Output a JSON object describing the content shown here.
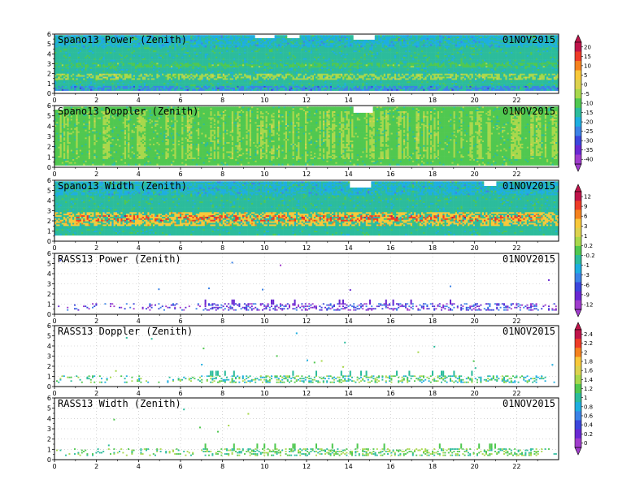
{
  "figure": {
    "date": "01NOV2015"
  },
  "chart_data": [
    {
      "type": "heatmap",
      "title": "Spano13 Power (Zenith)",
      "date": "01NOV2015",
      "xlim": [
        0,
        24
      ],
      "ylim": [
        0,
        6
      ],
      "x_ticks": [
        "0",
        "2",
        "4",
        "6",
        "8",
        "10",
        "12",
        "14",
        "16",
        "18",
        "20",
        "22"
      ],
      "y_ticks": [
        "0",
        "1",
        "2",
        "3",
        "4",
        "5",
        "6"
      ],
      "colorbar": {
        "ticks": [
          "20",
          "15",
          "10",
          "5",
          "0",
          "-5",
          "-10",
          "-15",
          "-20",
          "-25",
          "-30",
          "-35",
          "-40"
        ],
        "colors": [
          "#c0144a",
          "#ee3c28",
          "#f5821e",
          "#f8c83a",
          "#dcd24e",
          "#a8d84c",
          "#50c850",
          "#2cbc9c",
          "#1eaee0",
          "#3c82e6",
          "#3c46dc",
          "#6a28d2",
          "#a03ccc"
        ]
      },
      "pattern": {
        "mode": "profiler",
        "top_km": 5.9,
        "bottom_km": 0.3,
        "background_color_index": 7,
        "features": [
          {
            "from_km": 1.4,
            "to_km": 2.0,
            "color_index": 5
          },
          {
            "from_km": 2.7,
            "to_km": 3.1,
            "color_index": 6
          },
          {
            "from_km": 4.8,
            "to_km": 5.9,
            "color_index": 8
          },
          {
            "from_km": 0.3,
            "to_km": 0.8,
            "color_index": 9
          }
        ],
        "gaps": [
          {
            "x_from": 9.5,
            "x_to": 10.4,
            "from_km": 5.6,
            "to_km": 6.0
          },
          {
            "x_from": 14.2,
            "x_to": 15.2,
            "from_km": 5.5,
            "to_km": 6.0
          },
          {
            "x_from": 11.0,
            "x_to": 11.6,
            "from_km": 5.7,
            "to_km": 6.0
          }
        ]
      }
    },
    {
      "type": "heatmap",
      "title": "Spano13 Doppler (Zenith)",
      "date": "01NOV2015",
      "xlim": [
        0,
        24
      ],
      "ylim": [
        0,
        6
      ],
      "x_ticks": [
        "0",
        "2",
        "4",
        "6",
        "8",
        "10",
        "12",
        "14",
        "16",
        "18",
        "20",
        "22"
      ],
      "y_ticks": [
        "0",
        "1",
        "2",
        "3",
        "4",
        "5",
        "6"
      ],
      "pattern": {
        "mode": "profiler",
        "top_km": 5.9,
        "bottom_km": 0.2,
        "background_color_index": 6,
        "features": [
          {
            "from_km": 0.8,
            "to_km": 5.5,
            "color_index": 5,
            "vertical_streaks": true
          }
        ],
        "gaps": [
          {
            "x_from": 14.2,
            "x_to": 15.1,
            "from_km": 5.4,
            "to_km": 6.0
          },
          {
            "x_from": 0.0,
            "x_to": 0.4,
            "from_km": 5.7,
            "to_km": 6.0
          }
        ]
      }
    },
    {
      "type": "heatmap",
      "title": "Spano13 Width (Zenith)",
      "date": "01NOV2015",
      "xlim": [
        0,
        24
      ],
      "ylim": [
        0,
        6
      ],
      "x_ticks": [
        "0",
        "2",
        "4",
        "6",
        "8",
        "10",
        "12",
        "14",
        "16",
        "18",
        "20",
        "22"
      ],
      "y_ticks": [
        "0",
        "1",
        "2",
        "3",
        "4",
        "5",
        "6"
      ],
      "colorbar": {
        "ticks": [
          "12",
          "9",
          "6",
          "3",
          "1",
          "0.2",
          "-0.2",
          "-1",
          "-3",
          "-6",
          "-9",
          "-12"
        ],
        "colors": [
          "#c0144a",
          "#ee3c28",
          "#f5821e",
          "#f8c83a",
          "#dcd24e",
          "#a8d84c",
          "#50c850",
          "#2cbc9c",
          "#1eaee0",
          "#3c82e6",
          "#3c46dc",
          "#6a28d2",
          "#a03ccc"
        ]
      },
      "pattern": {
        "mode": "profiler",
        "top_km": 5.9,
        "bottom_km": 0.6,
        "background_color_index": 7,
        "features": [
          {
            "from_km": 1.6,
            "to_km": 3.0,
            "color_index": 3
          },
          {
            "from_km": 2.0,
            "to_km": 2.6,
            "color_index": 1,
            "sparse": true
          },
          {
            "from_km": 4.6,
            "to_km": 5.9,
            "color_index": 8
          }
        ],
        "gaps": [
          {
            "x_from": 14.0,
            "x_to": 15.0,
            "from_km": 5.4,
            "to_km": 6.0
          },
          {
            "x_from": 20.4,
            "x_to": 21.0,
            "from_km": 5.5,
            "to_km": 6.0
          }
        ]
      }
    },
    {
      "type": "heatmap",
      "title": "RASS13 Power (Zenith)",
      "date": "01NOV2015",
      "xlim": [
        0,
        24
      ],
      "ylim": [
        0,
        6
      ],
      "x_ticks": [
        "0",
        "2",
        "4",
        "6",
        "8",
        "10",
        "12",
        "14",
        "16",
        "18",
        "20",
        "22"
      ],
      "y_ticks": [
        "0",
        "1",
        "2",
        "3",
        "4",
        "5",
        "6"
      ],
      "pattern": {
        "mode": "rass",
        "band_from_km": 0.5,
        "band_to_km": 1.1,
        "dot_color_indices": [
          11,
          12,
          10,
          9
        ]
      }
    },
    {
      "type": "heatmap",
      "title": "RASS13 Doppler (Zenith)",
      "date": "01NOV2015",
      "xlim": [
        0,
        24
      ],
      "ylim": [
        0,
        6
      ],
      "x_ticks": [
        "0",
        "2",
        "4",
        "6",
        "8",
        "10",
        "12",
        "14",
        "16",
        "18",
        "20",
        "22"
      ],
      "y_ticks": [
        "0",
        "1",
        "2",
        "3",
        "4",
        "5",
        "6"
      ],
      "colorbar": {
        "ticks": [
          "2.4",
          "2.2",
          "2",
          "1.8",
          "1.6",
          "1.4",
          "1.2",
          "1",
          "0.8",
          "0.6",
          "0.4",
          "0.2",
          "0"
        ],
        "colors": [
          "#c0144a",
          "#ee3c28",
          "#f5821e",
          "#f8c83a",
          "#dcd24e",
          "#a8d84c",
          "#50c850",
          "#2cbc9c",
          "#1eaee0",
          "#3c82e6",
          "#3c46dc",
          "#6a28d2",
          "#a03ccc"
        ]
      },
      "pattern": {
        "mode": "rass",
        "band_from_km": 0.5,
        "band_to_km": 1.2,
        "dot_color_indices": [
          7,
          6,
          5,
          8
        ]
      }
    },
    {
      "type": "heatmap",
      "title": "RASS13 Width (Zenith)",
      "date": "01NOV2015",
      "xlim": [
        0,
        24
      ],
      "ylim": [
        0,
        6
      ],
      "x_ticks": [
        "0",
        "2",
        "4",
        "6",
        "8",
        "10",
        "12",
        "14",
        "16",
        "18",
        "20",
        "22"
      ],
      "y_ticks": [
        "0",
        "1",
        "2",
        "3",
        "4",
        "5",
        "6"
      ],
      "pattern": {
        "mode": "rass",
        "band_from_km": 0.5,
        "band_to_km": 1.2,
        "dot_color_indices": [
          6,
          5,
          7
        ]
      }
    }
  ]
}
